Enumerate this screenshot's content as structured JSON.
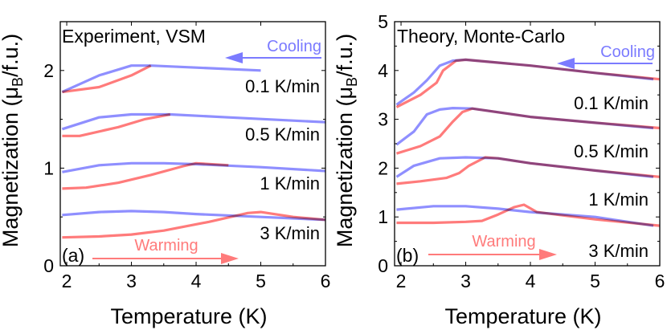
{
  "colors": {
    "cooling": "#7b7bff",
    "warming": "#ff7b7b",
    "overlap": "#7a3cc0",
    "axis": "#000000"
  },
  "chart_data": [
    {
      "type": "line",
      "panel_label": "(a)",
      "title": "Experiment, VSM",
      "xlabel": "Temperature (K)",
      "ylabel": "Magnetization (μ",
      "ylabel_sub": "B",
      "ylabel_suffix": "/f.u.)",
      "xlim": [
        1.9,
        6
      ],
      "ylim": [
        0,
        2.5
      ],
      "xticks": [
        2,
        3,
        4,
        5,
        6
      ],
      "yticks": [
        0,
        1,
        2
      ],
      "grid": false,
      "cooling_label": "Cooling",
      "warming_label": "Warming",
      "rates": [
        {
          "label": "0.1 K/min",
          "cooling": {
            "x": [
              1.93,
              2.5,
              3.0,
              3.3,
              4.0,
              5.0
            ],
            "y": [
              1.78,
              1.95,
              2.05,
              2.05,
              2.03,
              2.0
            ]
          },
          "warming": {
            "x": [
              1.93,
              2.5,
              3.0,
              3.3
            ],
            "y": [
              1.78,
              1.83,
              1.95,
              2.05
            ]
          }
        },
        {
          "label": "0.5 K/min",
          "cooling": {
            "x": [
              1.93,
              2.5,
              3.0,
              3.6,
              4.5,
              6.0
            ],
            "y": [
              1.4,
              1.52,
              1.55,
              1.55,
              1.52,
              1.47
            ]
          },
          "warming": {
            "x": [
              1.93,
              2.2,
              2.8,
              3.2,
              3.6
            ],
            "y": [
              1.33,
              1.33,
              1.42,
              1.5,
              1.55
            ]
          }
        },
        {
          "label": "1 K/min",
          "cooling": {
            "x": [
              1.93,
              2.5,
              3.0,
              3.5,
              4.0,
              5.0,
              6.0
            ],
            "y": [
              0.96,
              1.03,
              1.05,
              1.05,
              1.04,
              1.01,
              0.97
            ]
          },
          "warming": {
            "x": [
              1.93,
              2.3,
              2.8,
              3.3,
              3.8,
              4.0,
              4.5
            ],
            "y": [
              0.79,
              0.8,
              0.85,
              0.93,
              1.02,
              1.05,
              1.03
            ]
          }
        },
        {
          "label": "3 K/min",
          "cooling": {
            "x": [
              1.93,
              2.5,
              3.0,
              3.5,
              4.0,
              5.0,
              6.0
            ],
            "y": [
              0.52,
              0.55,
              0.56,
              0.55,
              0.53,
              0.5,
              0.47
            ]
          },
          "warming": {
            "x": [
              1.93,
              2.5,
              3.0,
              3.5,
              4.2,
              4.8,
              5.0,
              5.5,
              6.0
            ],
            "y": [
              0.29,
              0.3,
              0.32,
              0.36,
              0.45,
              0.54,
              0.55,
              0.5,
              0.47
            ]
          }
        }
      ]
    },
    {
      "type": "line",
      "panel_label": "(b)",
      "title": "Theory, Monte-Carlo",
      "xlabel": "Temperature (K)",
      "ylabel": "Magnetization (μ",
      "ylabel_sub": "B",
      "ylabel_suffix": "/f.u.)",
      "xlim": [
        1.9,
        6
      ],
      "ylim": [
        0,
        5
      ],
      "xticks": [
        2,
        3,
        4,
        5,
        6
      ],
      "yticks": [
        0,
        1,
        2,
        3,
        4,
        5
      ],
      "grid": false,
      "cooling_label": "Cooling",
      "warming_label": "Warming",
      "rates": [
        {
          "label": "0.1 K/min",
          "cooling": {
            "x": [
              1.93,
              2.2,
              2.4,
              2.6,
              2.8,
              3.0,
              4.0,
              5.0,
              5.9
            ],
            "y": [
              3.3,
              3.55,
              3.8,
              4.1,
              4.2,
              4.22,
              4.1,
              3.95,
              3.82
            ]
          },
          "warming": {
            "x": [
              1.93,
              2.3,
              2.55,
              2.65,
              2.85,
              3.0,
              4.0,
              5.0,
              6.0
            ],
            "y": [
              3.25,
              3.5,
              3.75,
              4.0,
              4.2,
              4.22,
              4.1,
              3.95,
              3.82
            ]
          }
        },
        {
          "label": "0.5 K/min",
          "cooling": {
            "x": [
              1.93,
              2.2,
              2.4,
              2.6,
              2.8,
              3.1,
              4.0,
              5.0,
              5.9
            ],
            "y": [
              2.48,
              2.75,
              3.1,
              3.2,
              3.23,
              3.22,
              3.05,
              2.93,
              2.82
            ]
          },
          "warming": {
            "x": [
              1.93,
              2.3,
              2.6,
              2.8,
              2.95,
              3.1,
              4.0,
              5.0,
              6.0
            ],
            "y": [
              2.3,
              2.45,
              2.65,
              2.95,
              3.15,
              3.22,
              3.05,
              2.93,
              2.82
            ]
          }
        },
        {
          "label": "1 K/min",
          "cooling": {
            "x": [
              1.93,
              2.2,
              2.6,
              3.0,
              3.5,
              4.0,
              5.0,
              5.9
            ],
            "y": [
              1.82,
              2.05,
              2.2,
              2.22,
              2.2,
              2.1,
              1.95,
              1.82
            ]
          },
          "warming": {
            "x": [
              1.93,
              2.3,
              2.7,
              2.9,
              3.05,
              3.3,
              3.5,
              4.0,
              5.0,
              6.0
            ],
            "y": [
              1.68,
              1.73,
              1.8,
              1.9,
              2.05,
              2.22,
              2.2,
              2.1,
              1.95,
              1.82
            ]
          }
        },
        {
          "label": "3 K/min",
          "cooling": {
            "x": [
              1.93,
              2.5,
              3.0,
              3.5,
              4.0,
              5.0,
              5.9
            ],
            "y": [
              1.15,
              1.22,
              1.22,
              1.17,
              1.1,
              1.0,
              0.82
            ]
          },
          "warming": {
            "x": [
              1.93,
              2.5,
              3.0,
              3.25,
              3.5,
              3.75,
              3.9,
              4.1,
              4.4,
              5.0,
              6.0
            ],
            "y": [
              0.88,
              0.88,
              0.9,
              0.92,
              1.05,
              1.2,
              1.25,
              1.1,
              1.05,
              0.95,
              0.82
            ]
          }
        }
      ]
    }
  ]
}
